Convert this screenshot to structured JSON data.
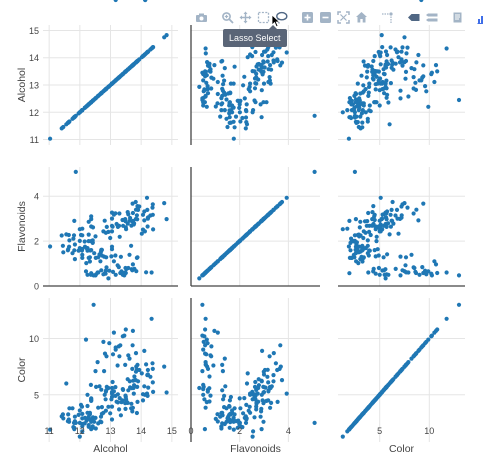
{
  "modebar": {
    "buttons": [
      {
        "name": "camera-icon",
        "label": "Download plot as a png"
      },
      {
        "name": "zoom-icon",
        "label": "Zoom"
      },
      {
        "name": "pan-icon",
        "label": "Pan"
      },
      {
        "name": "box-select-icon",
        "label": "Box Select"
      },
      {
        "name": "lasso-select-icon",
        "label": "Lasso Select"
      },
      {
        "name": "zoom-in-icon",
        "label": "Zoom in"
      },
      {
        "name": "zoom-out-icon",
        "label": "Zoom out"
      },
      {
        "name": "autoscale-icon",
        "label": "Autoscale"
      },
      {
        "name": "reset-axes-icon",
        "label": "Reset axes"
      },
      {
        "name": "spike-lines-icon",
        "label": "Toggle Spike Lines"
      },
      {
        "name": "hover-closest-icon",
        "label": "Show closest data on hover"
      },
      {
        "name": "hover-compare-icon",
        "label": "Compare data on hover"
      },
      {
        "name": "edit-chart-icon",
        "label": "Edit chart"
      },
      {
        "name": "plotly-logo-icon",
        "label": "Produced with Plotly"
      }
    ],
    "tooltip": "Lasso Select"
  },
  "colors": {
    "marker": "#1f77b4",
    "grid": "#e5e5e5",
    "axis_line": "#444444",
    "modebar_icon": "#a3b4c6",
    "modebar_active": "#506784",
    "tooltip_bg": "#5a6577"
  },
  "chart_data": {
    "type": "scatter",
    "subtype": "scatter-matrix",
    "dimensions": [
      {
        "name": "Alcohol",
        "range": [
          10.8,
          15.2
        ],
        "ticks": [
          11,
          12,
          13,
          14,
          15
        ]
      },
      {
        "name": "Flavonoids",
        "range": [
          0,
          5.3
        ],
        "ticks": [
          0,
          2,
          4
        ]
      },
      {
        "name": "Color",
        "range": [
          0.8,
          13.6
        ],
        "ticks": [
          5,
          10
        ]
      }
    ],
    "points": {
      "Alcohol": [
        14.23,
        13.2,
        13.16,
        14.37,
        13.24,
        14.2,
        14.39,
        14.06,
        14.83,
        13.86,
        14.1,
        14.12,
        13.75,
        14.75,
        14.38,
        13.63,
        14.3,
        13.83,
        14.19,
        13.64,
        14.06,
        12.93,
        13.71,
        12.85,
        13.5,
        13.05,
        13.39,
        13.3,
        13.87,
        14.02,
        13.73,
        13.58,
        13.68,
        13.76,
        13.51,
        13.48,
        13.28,
        13.05,
        13.07,
        14.22,
        13.56,
        13.41,
        13.88,
        13.24,
        13.05,
        14.21,
        14.38,
        13.9,
        14.1,
        13.94,
        13.05,
        13.83,
        13.82,
        13.77,
        13.74,
        13.56,
        14.22,
        13.29,
        13.72,
        12.37,
        12.33,
        12.64,
        13.67,
        12.37,
        12.17,
        12.37,
        13.11,
        12.37,
        13.34,
        12.21,
        12.29,
        13.86,
        13.49,
        12.99,
        11.96,
        11.66,
        13.03,
        11.84,
        12.33,
        12.7,
        12.0,
        12.72,
        12.08,
        13.05,
        11.84,
        12.67,
        12.16,
        11.65,
        11.64,
        12.08,
        12.08,
        12.0,
        12.69,
        12.29,
        11.62,
        12.47,
        11.81,
        12.29,
        12.37,
        12.29,
        12.08,
        12.6,
        12.34,
        11.82,
        12.51,
        12.42,
        12.25,
        12.72,
        12.22,
        11.61,
        11.46,
        12.52,
        11.76,
        11.41,
        12.08,
        11.03,
        11.82,
        12.42,
        12.77,
        12.0,
        11.45,
        11.56,
        12.42,
        13.05,
        11.87,
        12.07,
        12.43,
        11.79,
        12.37,
        12.04,
        12.86,
        12.88,
        12.81,
        12.7,
        12.51,
        12.6,
        12.25,
        12.53,
        13.49,
        12.84,
        12.93,
        13.36,
        13.52,
        13.62,
        12.25,
        13.16,
        13.88,
        12.87,
        13.32,
        13.08,
        13.5,
        12.79,
        13.11,
        13.23,
        12.58,
        13.17,
        13.84,
        12.45,
        14.34,
        13.48,
        12.36,
        13.69,
        12.85,
        12.96,
        13.78,
        13.73,
        13.45,
        12.82,
        13.58,
        13.4,
        12.2,
        12.77,
        14.16,
        13.71,
        13.4,
        13.27,
        13.17,
        14.13
      ],
      "Flavonoids": [
        3.06,
        2.76,
        3.24,
        3.49,
        2.69,
        3.39,
        2.52,
        2.51,
        2.98,
        3.15,
        3.32,
        2.43,
        2.76,
        3.69,
        3.64,
        2.91,
        3.14,
        3.4,
        3.93,
        3.03,
        3.17,
        2.41,
        2.88,
        2.37,
        2.61,
        2.68,
        2.94,
        2.19,
        2.97,
        2.33,
        3.25,
        3.19,
        2.69,
        2.74,
        2.53,
        2.98,
        2.68,
        2.43,
        2.64,
        3.04,
        3.29,
        2.68,
        3.56,
        2.63,
        3.0,
        2.65,
        3.17,
        3.39,
        2.92,
        3.54,
        3.27,
        2.99,
        3.74,
        2.79,
        2.9,
        2.78,
        3.0,
        3.23,
        3.67,
        0.57,
        1.09,
        1.41,
        1.79,
        3.1,
        1.75,
        2.65,
        3.18,
        2.0,
        1.3,
        1.02,
        2.86,
        1.25,
        2.89,
        2.14,
        1.57,
        2.03,
        1.32,
        1.85,
        1.28,
        1.61,
        2.01,
        1.36,
        1.25,
        1.64,
        1.2,
        1.1,
        1.98,
        1.75,
        2.27,
        2.55,
        1.39,
        1.69,
        1.53,
        1.25,
        1.64,
        1.46,
        2.26,
        2.29,
        1.6,
        2.0,
        1.65,
        1.28,
        1.58,
        1.59,
        2.21,
        1.94,
        1.69,
        1.61,
        1.69,
        1.59,
        1.5,
        1.25,
        1.46,
        2.25,
        2.26,
        1.76,
        2.9,
        1.92,
        2.43,
        2.53,
        1.79,
        2.3,
        2.03,
        1.75,
        5.08,
        1.58,
        2.61,
        2.11,
        2.98,
        2.27,
        1.28,
        2.63,
        2.91,
        0.7,
        0.47,
        0.6,
        0.5,
        0.52,
        0.8,
        0.55,
        0.34,
        0.65,
        0.76,
        1.39,
        1.57,
        1.36,
        1.28,
        0.83,
        0.58,
        0.63,
        0.58,
        1.31,
        1.1,
        0.92,
        0.6,
        0.5,
        0.66,
        0.47,
        0.6,
        0.61,
        0.5,
        0.75,
        0.69,
        0.68,
        0.76,
        0.96,
        0.47,
        0.58,
        0.8,
        0.5,
        0.65,
        0.52,
        0.61,
        0.7,
        0.55,
        0.84
      ],
      "Color": [
        5.64,
        4.38,
        5.68,
        7.8,
        4.32,
        6.75,
        5.25,
        5.05,
        5.2,
        7.22,
        5.75,
        5.0,
        5.6,
        7.5,
        7.3,
        6.2,
        6.6,
        8.7,
        5.1,
        5.65,
        4.5,
        3.93,
        3.52,
        3.58,
        4.8,
        3.95,
        4.5,
        4.7,
        5.7,
        6.9,
        3.84,
        5.4,
        4.2,
        5.1,
        4.6,
        4.25,
        3.7,
        5.1,
        6.13,
        7.2,
        4.28,
        5.43,
        4.36,
        5.04,
        5.24,
        4.9,
        6.1,
        6.2,
        8.9,
        7.2,
        5.6,
        7.05,
        6.3,
        5.85,
        6.25,
        6.38,
        6.8,
        8.42,
        9.4,
        1.95,
        3.27,
        5.75,
        3.8,
        4.45,
        2.95,
        4.6,
        5.3,
        4.68,
        3.17,
        2.85,
        3.05,
        3.38,
        3.74,
        3.35,
        3.21,
        3.8,
        4.6,
        2.65,
        3.4,
        2.57,
        2.5,
        3.9,
        2.2,
        4.8,
        3.05,
        2.62,
        2.45,
        2.6,
        2.8,
        1.74,
        2.4,
        3.6,
        3.05,
        2.15,
        3.25,
        2.6,
        2.5,
        2.9,
        4.5,
        2.3,
        3.3,
        2.45,
        2.8,
        2.06,
        2.94,
        2.7,
        3.4,
        3.3,
        2.7,
        2.65,
        2.9,
        2.0,
        3.8,
        3.08,
        2.9,
        1.9,
        1.95,
        2.06,
        3.4,
        1.28,
        3.25,
        6.0,
        2.2,
        2.8,
        2.5,
        3.94,
        3.0,
        2.12,
        2.6,
        4.1,
        5.4,
        5.7,
        5.0,
        5.45,
        7.1,
        3.85,
        5.0,
        5.7,
        4.92,
        4.6,
        5.6,
        4.35,
        4.4,
        8.21,
        4.0,
        4.9,
        7.65,
        8.42,
        9.4,
        8.6,
        10.8,
        7.1,
        10.52,
        7.6,
        7.9,
        9.01,
        7.5,
        13.0,
        11.75,
        7.65,
        5.88,
        5.58,
        5.28,
        9.58,
        6.62,
        10.68,
        10.26,
        8.66,
        8.5,
        5.5,
        9.899999,
        9.7,
        7.7,
        7.3,
        10.2,
        9.3,
        9.2
      ]
    }
  }
}
